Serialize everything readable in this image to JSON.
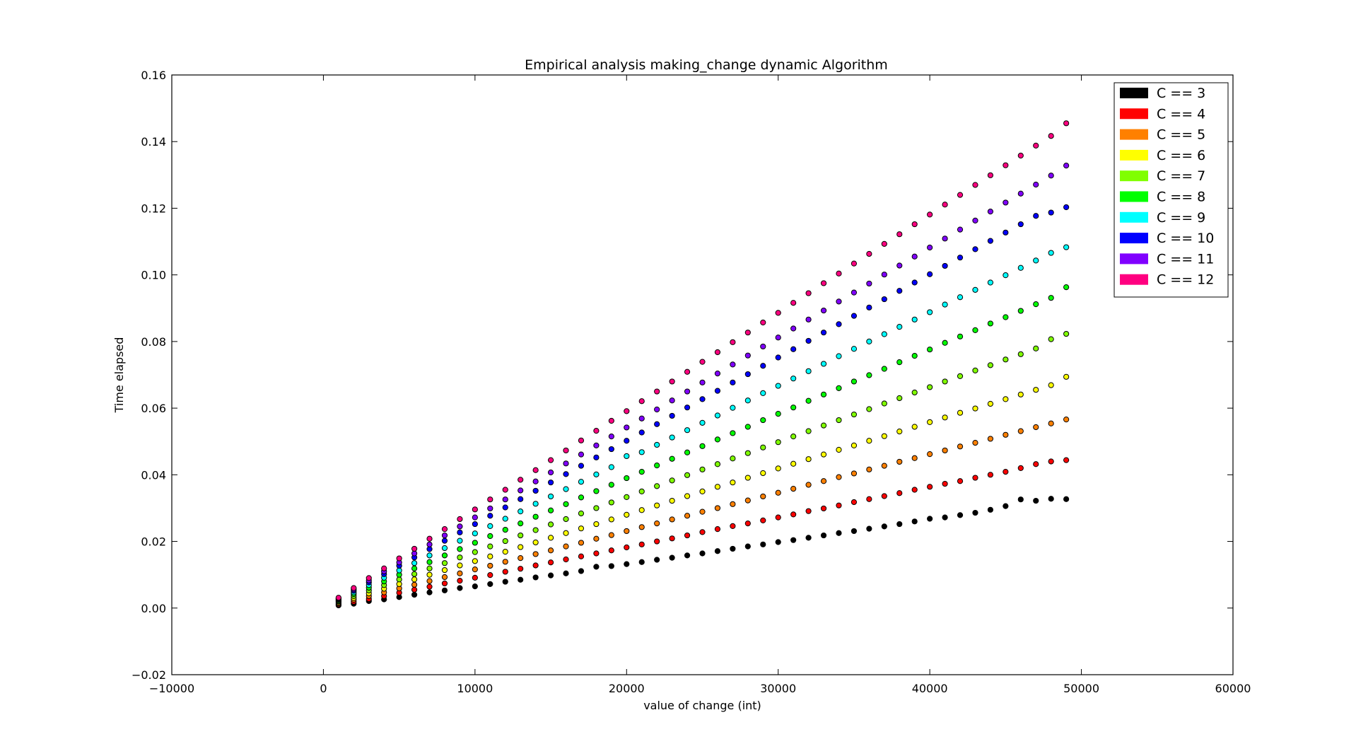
{
  "chart_data": {
    "type": "scatter",
    "title": "Empirical analysis making_change dynamic Algorithm",
    "xlabel": "value of change (int)",
    "ylabel": "Time elapsed",
    "xlim": [
      -10000,
      60000
    ],
    "ylim": [
      -0.02,
      0.16
    ],
    "xticks": [
      -10000,
      0,
      10000,
      20000,
      30000,
      40000,
      50000,
      60000
    ],
    "xtick_labels": [
      "−10000",
      "0",
      "10000",
      "20000",
      "30000",
      "40000",
      "50000",
      "60000"
    ],
    "yticks": [
      -0.02,
      0.0,
      0.02,
      0.04,
      0.06,
      0.08,
      0.1,
      0.12,
      0.14,
      0.16
    ],
    "ytick_labels": [
      "−0.02",
      "0.00",
      "0.02",
      "0.04",
      "0.06",
      "0.08",
      "0.10",
      "0.12",
      "0.14",
      "0.16"
    ],
    "grid": false,
    "legend_position": "top-right",
    "x": [
      1000,
      2000,
      3000,
      4000,
      5000,
      6000,
      7000,
      8000,
      9000,
      10000,
      11000,
      12000,
      13000,
      14000,
      15000,
      16000,
      17000,
      18000,
      19000,
      20000,
      21000,
      22000,
      23000,
      24000,
      25000,
      26000,
      27000,
      28000,
      29000,
      30000,
      31000,
      32000,
      33000,
      34000,
      35000,
      36000,
      37000,
      38000,
      39000,
      40000,
      41000,
      42000,
      43000,
      44000,
      45000,
      46000,
      47000,
      48000,
      49000
    ],
    "series": [
      {
        "name": "C == 3",
        "color": "#000000",
        "values": [
          0.0008,
          0.0013,
          0.0021,
          0.0026,
          0.0033,
          0.004,
          0.0047,
          0.0053,
          0.006,
          0.0065,
          0.0072,
          0.0079,
          0.0085,
          0.0092,
          0.0098,
          0.0104,
          0.0111,
          0.0124,
          0.0126,
          0.0132,
          0.0138,
          0.0145,
          0.0151,
          0.0158,
          0.0164,
          0.0171,
          0.0178,
          0.0185,
          0.0191,
          0.0198,
          0.0204,
          0.0211,
          0.0218,
          0.0225,
          0.0231,
          0.0238,
          0.0245,
          0.0252,
          0.026,
          0.0268,
          0.0272,
          0.0279,
          0.0286,
          0.0295,
          0.0306,
          0.0326,
          0.0322,
          0.0328,
          0.0327
        ]
      },
      {
        "name": "C == 4",
        "color": "#ff0000",
        "values": [
          0.0011,
          0.0019,
          0.0027,
          0.0036,
          0.0046,
          0.0055,
          0.0064,
          0.0074,
          0.0082,
          0.0091,
          0.0099,
          0.0109,
          0.0118,
          0.0128,
          0.0137,
          0.0146,
          0.0155,
          0.0164,
          0.0173,
          0.0182,
          0.0191,
          0.02,
          0.0209,
          0.0218,
          0.0228,
          0.0237,
          0.0246,
          0.0254,
          0.0263,
          0.0272,
          0.0281,
          0.0291,
          0.0299,
          0.0308,
          0.0318,
          0.0327,
          0.0336,
          0.0345,
          0.0355,
          0.0364,
          0.0373,
          0.0381,
          0.0391,
          0.04,
          0.0409,
          0.042,
          0.0432,
          0.044,
          0.0444
        ]
      },
      {
        "name": "C == 5",
        "color": "#ff8000",
        "values": [
          0.0014,
          0.0025,
          0.0036,
          0.0047,
          0.0059,
          0.007,
          0.0081,
          0.0093,
          0.0104,
          0.0116,
          0.0127,
          0.0139,
          0.015,
          0.0162,
          0.0173,
          0.0185,
          0.0196,
          0.0208,
          0.0219,
          0.0231,
          0.0243,
          0.0254,
          0.0266,
          0.0277,
          0.0289,
          0.03,
          0.0312,
          0.0323,
          0.0335,
          0.0346,
          0.0358,
          0.037,
          0.0381,
          0.0393,
          0.0404,
          0.0416,
          0.0427,
          0.0439,
          0.045,
          0.0462,
          0.0473,
          0.0485,
          0.0496,
          0.0508,
          0.052,
          0.0531,
          0.0543,
          0.0554,
          0.0566
        ]
      },
      {
        "name": "C == 6",
        "color": "#ffff00",
        "values": [
          0.0017,
          0.003,
          0.0044,
          0.0058,
          0.0072,
          0.0086,
          0.01,
          0.0114,
          0.0128,
          0.0141,
          0.0155,
          0.0169,
          0.0183,
          0.0197,
          0.0211,
          0.0225,
          0.0239,
          0.0252,
          0.0266,
          0.028,
          0.0294,
          0.0308,
          0.0322,
          0.0336,
          0.035,
          0.0364,
          0.0377,
          0.0391,
          0.0405,
          0.0419,
          0.0433,
          0.0447,
          0.0461,
          0.0475,
          0.0488,
          0.0502,
          0.0516,
          0.053,
          0.0544,
          0.0558,
          0.0572,
          0.0586,
          0.0599,
          0.0613,
          0.0627,
          0.0641,
          0.0655,
          0.0669,
          0.0694
        ]
      },
      {
        "name": "C == 7",
        "color": "#80ff00",
        "values": [
          0.002,
          0.0036,
          0.0053,
          0.0069,
          0.0086,
          0.0102,
          0.0119,
          0.0135,
          0.0152,
          0.0168,
          0.0185,
          0.0201,
          0.0218,
          0.0234,
          0.0251,
          0.0267,
          0.0284,
          0.03,
          0.0317,
          0.0333,
          0.035,
          0.0366,
          0.0383,
          0.0399,
          0.0416,
          0.0432,
          0.0449,
          0.0465,
          0.0482,
          0.0498,
          0.0515,
          0.0531,
          0.0548,
          0.0564,
          0.0581,
          0.0597,
          0.0614,
          0.063,
          0.0647,
          0.0663,
          0.068,
          0.0696,
          0.0713,
          0.0729,
          0.0746,
          0.0762,
          0.0779,
          0.0807,
          0.0823
        ]
      },
      {
        "name": "C == 8",
        "color": "#00ff00",
        "values": [
          0.0022,
          0.0042,
          0.0061,
          0.008,
          0.01,
          0.0119,
          0.0138,
          0.0158,
          0.0177,
          0.0196,
          0.0216,
          0.0235,
          0.0254,
          0.0274,
          0.0293,
          0.0312,
          0.0332,
          0.0351,
          0.037,
          0.039,
          0.0409,
          0.0428,
          0.0448,
          0.0467,
          0.0486,
          0.0506,
          0.0525,
          0.0544,
          0.0564,
          0.0583,
          0.0602,
          0.0622,
          0.0641,
          0.066,
          0.068,
          0.0699,
          0.0718,
          0.0738,
          0.0757,
          0.0776,
          0.0796,
          0.0815,
          0.0834,
          0.0854,
          0.0873,
          0.0892,
          0.0912,
          0.0931,
          0.0963
        ]
      },
      {
        "name": "C == 9",
        "color": "#00ffff",
        "values": [
          0.0025,
          0.0047,
          0.0069,
          0.0091,
          0.0113,
          0.0135,
          0.0158,
          0.018,
          0.0202,
          0.0224,
          0.0246,
          0.0268,
          0.029,
          0.0313,
          0.0335,
          0.0357,
          0.0379,
          0.0401,
          0.0423,
          0.0456,
          0.0468,
          0.049,
          0.0512,
          0.0534,
          0.0556,
          0.0578,
          0.0601,
          0.0623,
          0.0645,
          0.0667,
          0.0689,
          0.0711,
          0.0733,
          0.0756,
          0.0778,
          0.08,
          0.0822,
          0.0844,
          0.0866,
          0.0888,
          0.0911,
          0.0933,
          0.0955,
          0.0977,
          0.0999,
          0.1021,
          0.1043,
          0.1066,
          0.1083
        ]
      },
      {
        "name": "C == 10",
        "color": "#0000ff",
        "values": [
          0.0027,
          0.0052,
          0.0077,
          0.0102,
          0.0127,
          0.0152,
          0.0177,
          0.0202,
          0.0227,
          0.0252,
          0.0277,
          0.0302,
          0.0327,
          0.0352,
          0.0377,
          0.0402,
          0.0427,
          0.0452,
          0.0477,
          0.0502,
          0.0527,
          0.0552,
          0.0577,
          0.0602,
          0.0627,
          0.0652,
          0.0677,
          0.0702,
          0.0727,
          0.0752,
          0.0777,
          0.0802,
          0.0827,
          0.0852,
          0.0877,
          0.0902,
          0.0927,
          0.0952,
          0.0977,
          0.1002,
          0.1027,
          0.1052,
          0.1077,
          0.1102,
          0.1127,
          0.1152,
          0.1177,
          0.1187,
          0.1203
        ]
      },
      {
        "name": "C == 11",
        "color": "#8000ff",
        "values": [
          0.0029,
          0.0056,
          0.0083,
          0.011,
          0.0137,
          0.0164,
          0.0191,
          0.0218,
          0.0245,
          0.0272,
          0.0299,
          0.0326,
          0.0353,
          0.038,
          0.0407,
          0.0434,
          0.0461,
          0.0488,
          0.0515,
          0.0542,
          0.0569,
          0.0596,
          0.0623,
          0.065,
          0.0677,
          0.0704,
          0.0731,
          0.0758,
          0.0785,
          0.0812,
          0.0839,
          0.0866,
          0.0893,
          0.092,
          0.0947,
          0.0974,
          0.1001,
          0.1028,
          0.1055,
          0.1082,
          0.1109,
          0.1136,
          0.1163,
          0.119,
          0.1217,
          0.1244,
          0.1271,
          0.1298,
          0.1328
        ]
      },
      {
        "name": "C == 12",
        "color": "#ff0080",
        "values": [
          0.0031,
          0.006,
          0.009,
          0.0119,
          0.0149,
          0.0178,
          0.0208,
          0.0237,
          0.0267,
          0.0296,
          0.0326,
          0.0355,
          0.0385,
          0.0414,
          0.0444,
          0.0473,
          0.0503,
          0.0532,
          0.0562,
          0.0591,
          0.0621,
          0.065,
          0.068,
          0.0709,
          0.0739,
          0.0768,
          0.0798,
          0.0827,
          0.0857,
          0.0886,
          0.0916,
          0.0945,
          0.0975,
          0.1004,
          0.1034,
          0.1063,
          0.1093,
          0.1122,
          0.1152,
          0.1181,
          0.1211,
          0.124,
          0.127,
          0.1299,
          0.1329,
          0.1358,
          0.1388,
          0.1417,
          0.1455
        ]
      }
    ]
  }
}
